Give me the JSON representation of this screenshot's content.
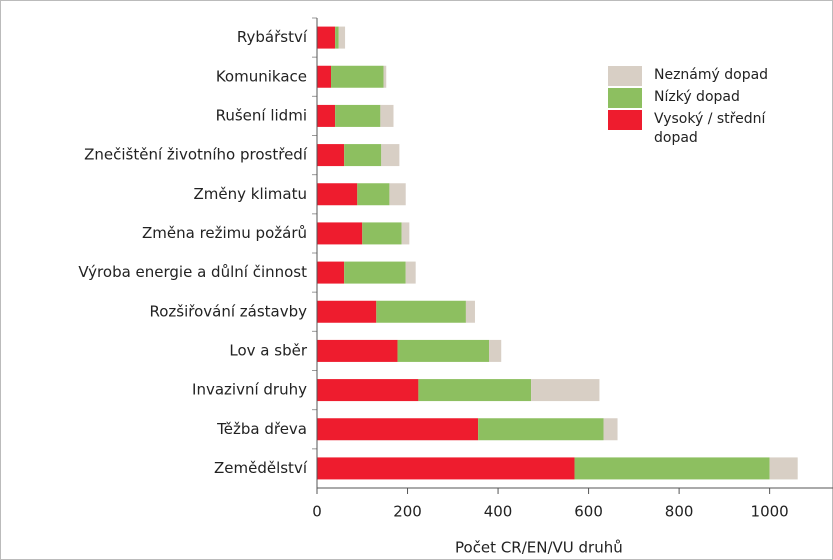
{
  "chart_data": {
    "type": "stacked-barh",
    "xlabel": "Počet CR/EN/VU druhů",
    "categories": [
      "Rybářství",
      "Komunikace",
      "Rušení lidmi",
      "Znečištění životního prostředí",
      "Změny klimatu",
      "Změna režimu požárů",
      "Výroba energie a důlní činnost",
      "Rozšiřování zástavby",
      "Lov a sběr",
      "Invazivní druhy",
      "Těžba dřeva",
      "Zemědělství"
    ],
    "series": [
      {
        "name": "Vysoký / střední dopad",
        "color": "#ee1c2e",
        "values": [
          40,
          31,
          40,
          60,
          89,
          100,
          60,
          131,
          178,
          224,
          356,
          569
        ]
      },
      {
        "name": "Nízký dopad",
        "color": "#8dbf60",
        "values": [
          8,
          116,
          100,
          82,
          71,
          87,
          136,
          198,
          202,
          249,
          277,
          431
        ]
      },
      {
        "name": "Neznámý dopad",
        "color": "#d8cfc5",
        "values": [
          14,
          6,
          29,
          40,
          36,
          17,
          22,
          20,
          27,
          151,
          31,
          62
        ]
      }
    ],
    "xlim": [
      0,
      1140
    ],
    "xticks": [
      0,
      200,
      400,
      600,
      800,
      1000
    ]
  }
}
